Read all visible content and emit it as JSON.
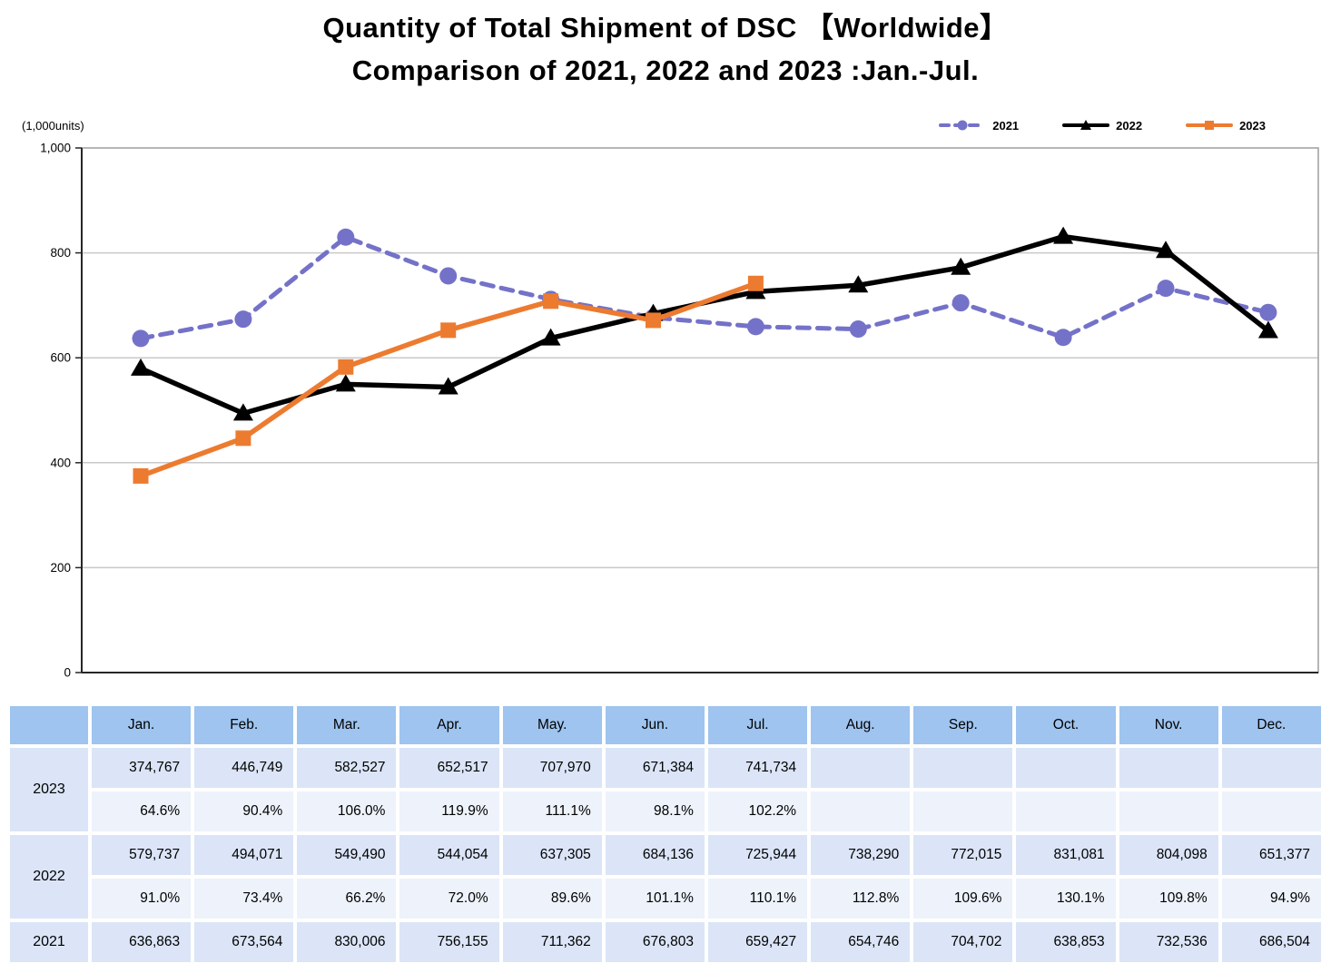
{
  "title": {
    "line1": "Quantity of Total Shipment of DSC 【Worldwide】",
    "line2": "Comparison of 2021, 2022 and 2023 :Jan.-Jul."
  },
  "units_label": "(1,000units)",
  "chart_data": {
    "type": "line",
    "title": "Quantity of Total Shipment of DSC 【Worldwide】",
    "subtitle": "Comparison of 2021, 2022 and 2023 :Jan.-Jul.",
    "ylabel": "(1,000units)",
    "ylim": [
      0,
      1000
    ],
    "y_tick_step": 200,
    "y_tick_labels": [
      "0",
      "200",
      "400",
      "600",
      "800",
      "1,000"
    ],
    "grid": "horizontal",
    "legend_position": "top-right",
    "categories": [
      "Jan.",
      "Feb.",
      "Mar.",
      "Apr.",
      "May.",
      "Jun.",
      "Jul.",
      "Aug.",
      "Sep.",
      "Oct.",
      "Nov.",
      "Dec."
    ],
    "series": [
      {
        "name": "2021",
        "color": "#7472C8",
        "line_style": "dashed",
        "marker": "circle",
        "values": [
          636.863,
          673.564,
          830.006,
          756.155,
          711.362,
          676.803,
          659.427,
          654.746,
          704.702,
          638.853,
          732.536,
          686.504
        ]
      },
      {
        "name": "2022",
        "color": "#000000",
        "line_style": "solid",
        "marker": "triangle",
        "values": [
          579.737,
          494.071,
          549.49,
          544.054,
          637.305,
          684.136,
          725.944,
          738.29,
          772.015,
          831.081,
          804.098,
          651.377
        ]
      },
      {
        "name": "2023",
        "color": "#EC7B30",
        "line_style": "solid",
        "marker": "square",
        "values": [
          374.767,
          446.749,
          582.527,
          652.517,
          707.97,
          671.384,
          741.734,
          null,
          null,
          null,
          null,
          null
        ]
      }
    ]
  },
  "table": {
    "corner_label": "",
    "months": [
      "Jan.",
      "Feb.",
      "Mar.",
      "Apr.",
      "May.",
      "Jun.",
      "Jul.",
      "Aug.",
      "Sep.",
      "Oct.",
      "Nov.",
      "Dec."
    ],
    "rows": [
      {
        "year": "2023",
        "values": [
          "374,767",
          "446,749",
          "582,527",
          "652,517",
          "707,970",
          "671,384",
          "741,734",
          "",
          "",
          "",
          "",
          ""
        ],
        "percents": [
          "64.6%",
          "90.4%",
          "106.0%",
          "119.9%",
          "111.1%",
          "98.1%",
          "102.2%",
          "",
          "",
          "",
          "",
          ""
        ]
      },
      {
        "year": "2022",
        "values": [
          "579,737",
          "494,071",
          "549,490",
          "544,054",
          "637,305",
          "684,136",
          "725,944",
          "738,290",
          "772,015",
          "831,081",
          "804,098",
          "651,377"
        ],
        "percents": [
          "91.0%",
          "73.4%",
          "66.2%",
          "72.0%",
          "89.6%",
          "101.1%",
          "110.1%",
          "112.8%",
          "109.6%",
          "130.1%",
          "109.8%",
          "94.9%"
        ]
      },
      {
        "year": "2021",
        "values": [
          "636,863",
          "673,564",
          "830,006",
          "756,155",
          "711,362",
          "676,803",
          "659,427",
          "654,746",
          "704,702",
          "638,853",
          "732,536",
          "686,504"
        ],
        "percents": null
      }
    ]
  },
  "colors": {
    "header_bg": "#9EC4EF",
    "value_cell_bg": "#DBE5F7",
    "percent_cell_bg": "#EDF2FB",
    "label_cell_bg": "#DBE5F7",
    "grid_line": "#C9C9C9",
    "axis": "#262626",
    "plot_border": "#9E9E9E",
    "series_2021": "#7472C8",
    "series_2022": "#000000",
    "series_2023": "#EC7B30"
  }
}
